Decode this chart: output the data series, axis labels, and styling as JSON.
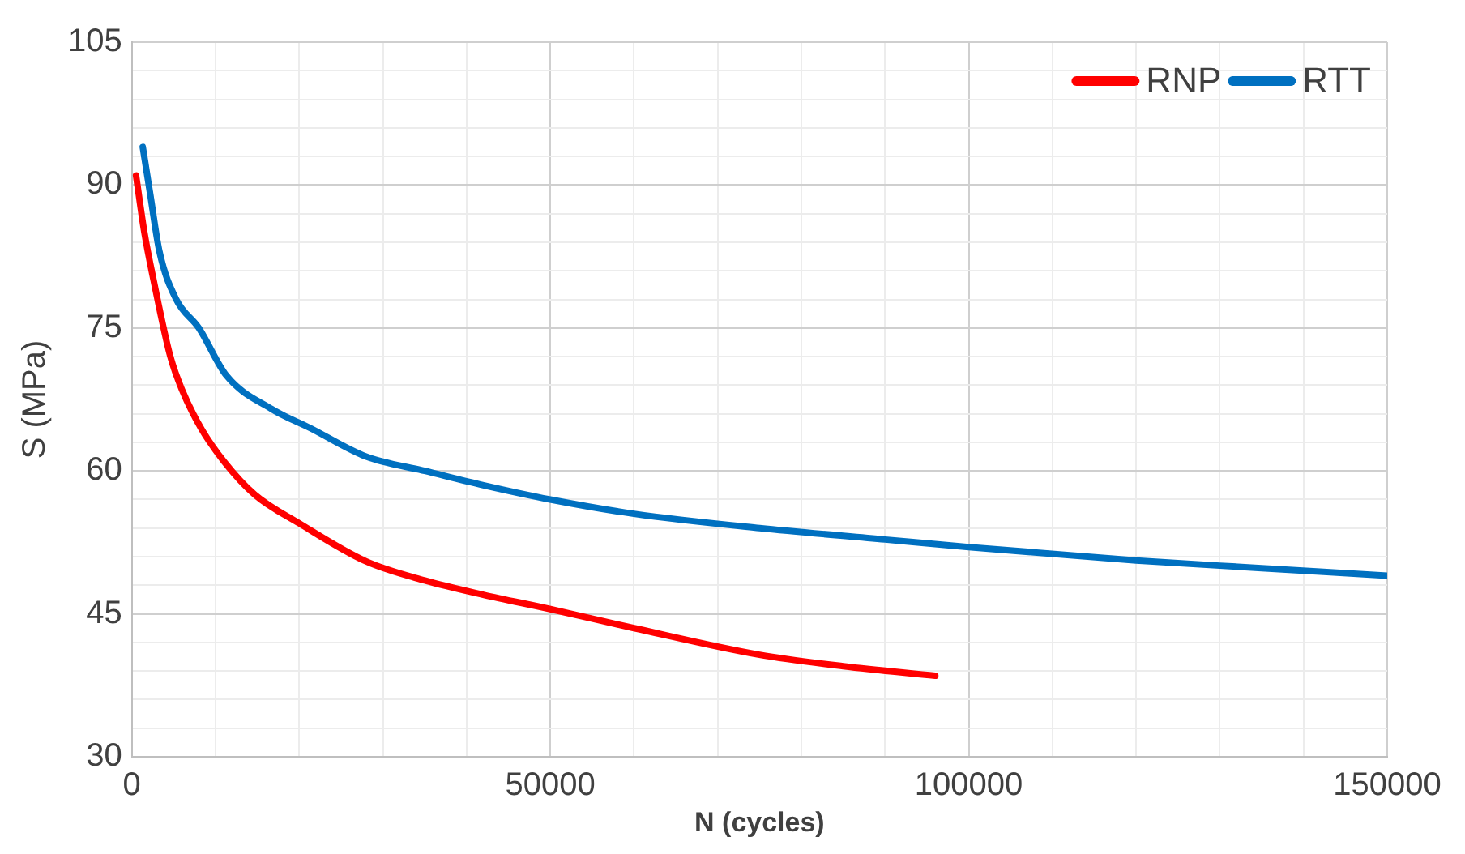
{
  "chart_data": {
    "type": "line",
    "xlabel": "N (cycles)",
    "ylabel": "S (MPa)",
    "xlim": [
      0,
      150000
    ],
    "xticks": [
      0,
      {
        "value": 10000,
        "label": null
      },
      {
        "value": 20000,
        "label": null
      },
      {
        "value": 30000,
        "label": null
      },
      {
        "value": 40000,
        "label": null
      },
      50000,
      {
        "value": 60000,
        "label": null
      },
      {
        "value": 70000,
        "label": null
      },
      {
        "value": 80000,
        "label": null
      },
      {
        "value": 90000,
        "label": null
      },
      100000,
      {
        "value": 110000,
        "label": null
      },
      {
        "value": 120000,
        "label": null
      },
      {
        "value": 130000,
        "label": null
      },
      {
        "value": 140000,
        "label": null
      },
      150000
    ],
    "ylim": [
      30,
      105
    ],
    "yticks": [
      30,
      {
        "value": 33,
        "label": null
      },
      {
        "value": 36,
        "label": null
      },
      {
        "value": 39,
        "label": null
      },
      {
        "value": 42,
        "label": null
      },
      45,
      {
        "value": 48,
        "label": null
      },
      {
        "value": 51,
        "label": null
      },
      {
        "value": 54,
        "label": null
      },
      {
        "value": 57,
        "label": null
      },
      60,
      {
        "value": 63,
        "label": null
      },
      {
        "value": 66,
        "label": null
      },
      {
        "value": 69,
        "label": null
      },
      {
        "value": 72,
        "label": null
      },
      75,
      {
        "value": 78,
        "label": null
      },
      {
        "value": 81,
        "label": null
      },
      {
        "value": 84,
        "label": null
      },
      {
        "value": 87,
        "label": null
      },
      90,
      {
        "value": 93,
        "label": null
      },
      {
        "value": 96,
        "label": null
      },
      {
        "value": 99,
        "label": null
      },
      {
        "value": 102,
        "label": null
      },
      105
    ],
    "grid": true,
    "legend": "top right",
    "marker": "none",
    "line_style": "solid",
    "series": [
      {
        "name": "RNP",
        "color": "#ff0000",
        "x": [
          500,
          1500,
          2600,
          4600,
          6000,
          8250,
          11000,
          14700,
          20000,
          28000,
          35000,
          42000,
          50000,
          60000,
          75000,
          85000,
          96000
        ],
        "values": [
          91,
          85,
          80,
          72,
          68.5,
          64.5,
          61,
          57.5,
          54.5,
          50.5,
          48.5,
          47,
          45.5,
          43.5,
          40.7,
          39.5,
          38.5
        ]
      },
      {
        "name": "RTT",
        "color": "#0070c0",
        "x": [
          1300,
          2200,
          3300,
          5300,
          8000,
          11300,
          16700,
          21300,
          28000,
          35000,
          42000,
          50000,
          60000,
          75000,
          90000,
          100000,
          120000,
          135000,
          150000
        ],
        "values": [
          94,
          89,
          83,
          78,
          75,
          70,
          66.5,
          64.5,
          61.5,
          60,
          58.5,
          57,
          55.5,
          54,
          52.8,
          52,
          50.6,
          49.8,
          49
        ]
      }
    ]
  }
}
